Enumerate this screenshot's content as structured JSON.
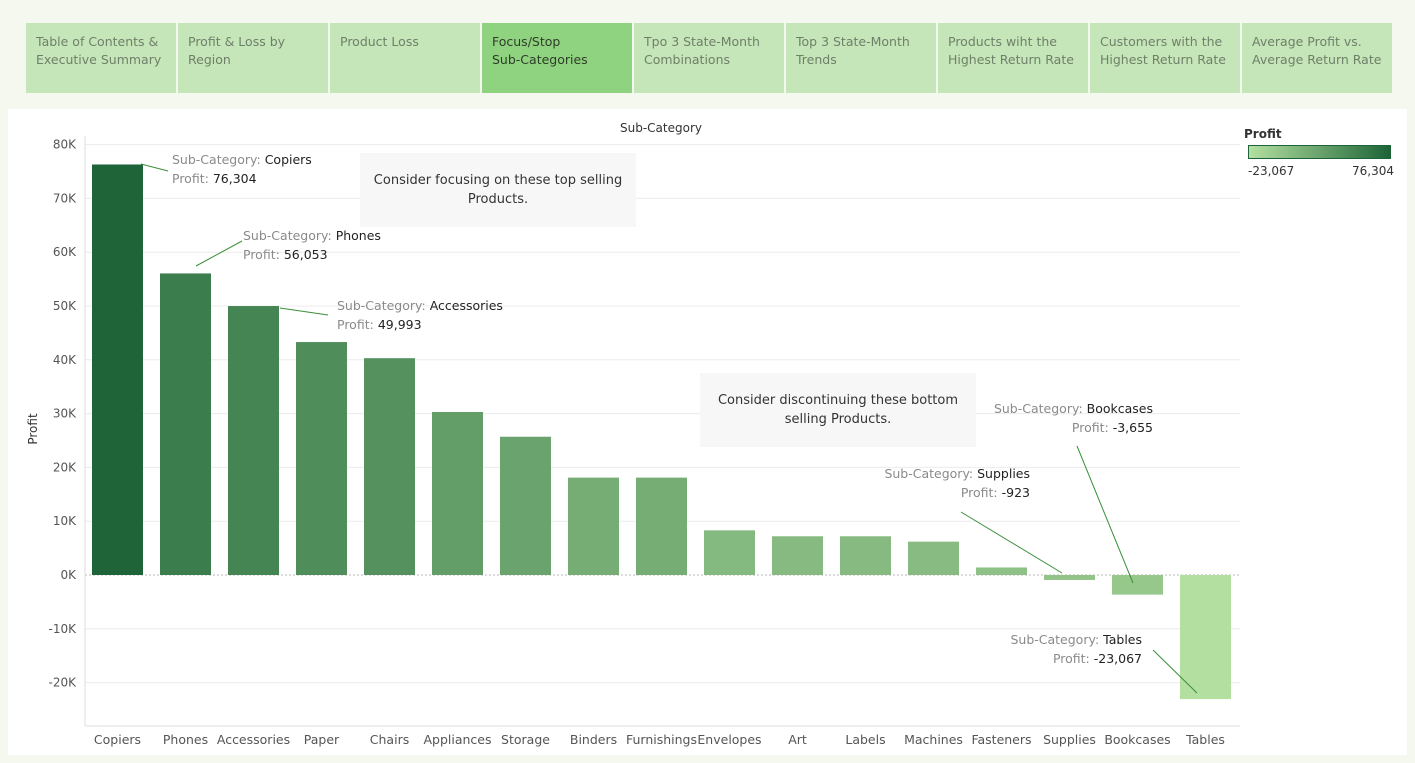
{
  "tabs": [
    {
      "line1": "Table of Contents &",
      "line2": "Executive Summary",
      "active": false
    },
    {
      "line1": "Profit & Loss by Region",
      "line2": "",
      "active": false
    },
    {
      "line1": "Product Loss",
      "line2": "",
      "active": false
    },
    {
      "line1": "Focus/Stop",
      "line2": "Sub-Categories",
      "active": true
    },
    {
      "line1": "Tpo 3 State-Month",
      "line2": "Combinations",
      "active": false
    },
    {
      "line1": "Top 3 State-Month",
      "line2": "Trends",
      "active": false
    },
    {
      "line1": "Products wiht the",
      "line2": "Highest Return Rate",
      "active": false
    },
    {
      "line1": "Customers with the",
      "line2": "Highest Return Rate",
      "active": false
    },
    {
      "line1": "Average Profit vs.",
      "line2": "Average Return Rate",
      "active": false
    }
  ],
  "legend": {
    "title": "Profit",
    "min_label": "-23,067",
    "max_label": "76,304"
  },
  "annotations": {
    "top": {
      "line1": "Consider focusing on these top selling",
      "line2": "Products."
    },
    "bottom": {
      "line1": "Consider discontinuing these bottom",
      "line2": "selling Products."
    }
  },
  "colors": {
    "low": "#b3e0a0",
    "high": "#1e6438"
  },
  "chart_data": {
    "type": "bar",
    "title": "Sub-Category",
    "xlabel": "",
    "ylabel": "Profit",
    "ylim": [
      -25000,
      80000
    ],
    "yticks": [
      -20000,
      -10000,
      0,
      10000,
      20000,
      30000,
      40000,
      50000,
      60000,
      70000,
      80000
    ],
    "ytick_labels": [
      "-20K",
      "-10K",
      "0K",
      "10K",
      "20K",
      "30K",
      "40K",
      "50K",
      "60K",
      "70K",
      "80K"
    ],
    "categories": [
      "Copiers",
      "Phones",
      "Accessories",
      "Paper",
      "Chairs",
      "Appliances",
      "Storage",
      "Binders",
      "Furnishings",
      "Envelopes",
      "Art",
      "Labels",
      "Machines",
      "Fasteners",
      "Supplies",
      "Bookcases",
      "Tables"
    ],
    "values": [
      76304,
      56053,
      49993,
      43300,
      40300,
      30300,
      25700,
      18100,
      18100,
      8300,
      7200,
      7200,
      6200,
      1400,
      -923,
      -3655,
      -23067
    ],
    "grid": true,
    "tooltip_label": "Sub-Category:",
    "value_label": "Profit:",
    "callouts": [
      {
        "category": "Copiers",
        "profit": "76,304"
      },
      {
        "category": "Phones",
        "profit": "56,053"
      },
      {
        "category": "Accessories",
        "profit": "49,993"
      },
      {
        "category": "Bookcases",
        "profit": "-3,655"
      },
      {
        "category": "Supplies",
        "profit": "-923"
      },
      {
        "category": "Tables",
        "profit": "-23,067"
      }
    ]
  }
}
